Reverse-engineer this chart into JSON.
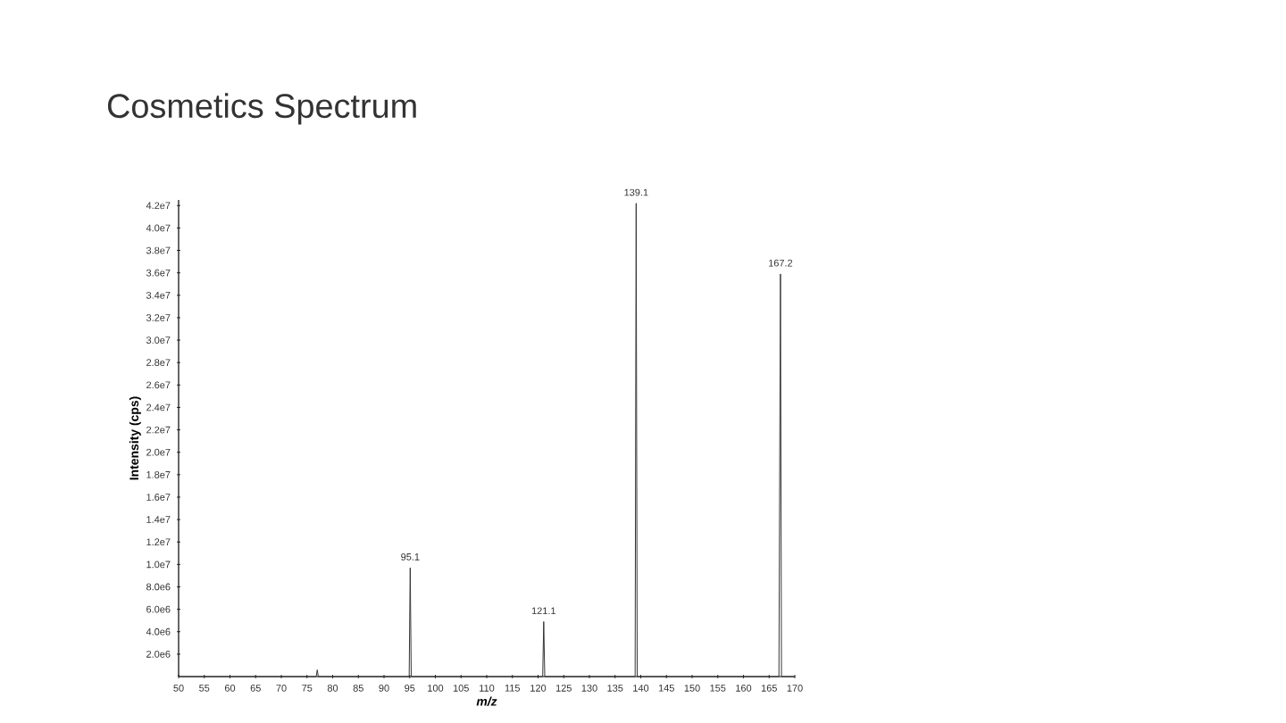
{
  "chart_data": {
    "type": "line",
    "title": "Cosmetics Spectrum",
    "xlabel": "m/z",
    "ylabel": "Intensity (cps)",
    "x": [
      50,
      76.8,
      77,
      77.2,
      94.9,
      95.1,
      95.3,
      120.9,
      121.1,
      121.3,
      138.9,
      139.1,
      139.3,
      166.9,
      167.2,
      167.4,
      170
    ],
    "series": [
      {
        "color": "#333333",
        "values": [
          0,
          0,
          600000,
          0,
          0,
          9700000,
          0,
          0,
          4900000,
          0,
          0,
          42200000,
          0,
          0,
          35900000,
          0,
          0
        ]
      }
    ],
    "xlim": [
      50,
      170
    ],
    "xticks": [
      50,
      55,
      60,
      65,
      70,
      75,
      80,
      85,
      90,
      95,
      100,
      105,
      110,
      115,
      120,
      125,
      130,
      135,
      140,
      145,
      150,
      155,
      160,
      165,
      170
    ],
    "ylim": [
      0,
      42500000
    ],
    "yticks": [
      {
        "value": 2000000,
        "label": "2.0e6"
      },
      {
        "value": 4000000,
        "label": "4.0e6"
      },
      {
        "value": 6000000,
        "label": "6.0e6"
      },
      {
        "value": 8000000,
        "label": "8.0e6"
      },
      {
        "value": 10000000,
        "label": "1.0e7"
      },
      {
        "value": 12000000,
        "label": "1.2e7"
      },
      {
        "value": 14000000,
        "label": "1.4e7"
      },
      {
        "value": 16000000,
        "label": "1.6e7"
      },
      {
        "value": 18000000,
        "label": "1.8e7"
      },
      {
        "value": 20000000,
        "label": "2.0e7"
      },
      {
        "value": 22000000,
        "label": "2.2e7"
      },
      {
        "value": 24000000,
        "label": "2.4e7"
      },
      {
        "value": 26000000,
        "label": "2.6e7"
      },
      {
        "value": 28000000,
        "label": "2.8e7"
      },
      {
        "value": 30000000,
        "label": "3.0e7"
      },
      {
        "value": 32000000,
        "label": "3.2e7"
      },
      {
        "value": 34000000,
        "label": "3.4e7"
      },
      {
        "value": 36000000,
        "label": "3.6e7"
      },
      {
        "value": 38000000,
        "label": "3.8e7"
      },
      {
        "value": 40000000,
        "label": "4.0e7"
      },
      {
        "value": 42000000,
        "label": "4.2e7"
      }
    ],
    "annotations": [
      {
        "text": "95.1",
        "x": 95.1,
        "y": 9700000
      },
      {
        "text": "121.1",
        "x": 121.1,
        "y": 4900000
      },
      {
        "text": "139.1",
        "x": 139.1,
        "y": 42200000
      },
      {
        "text": "167.2",
        "x": 167.2,
        "y": 35900000
      }
    ],
    "grid": false,
    "marker": "none",
    "line_style": "solid"
  }
}
